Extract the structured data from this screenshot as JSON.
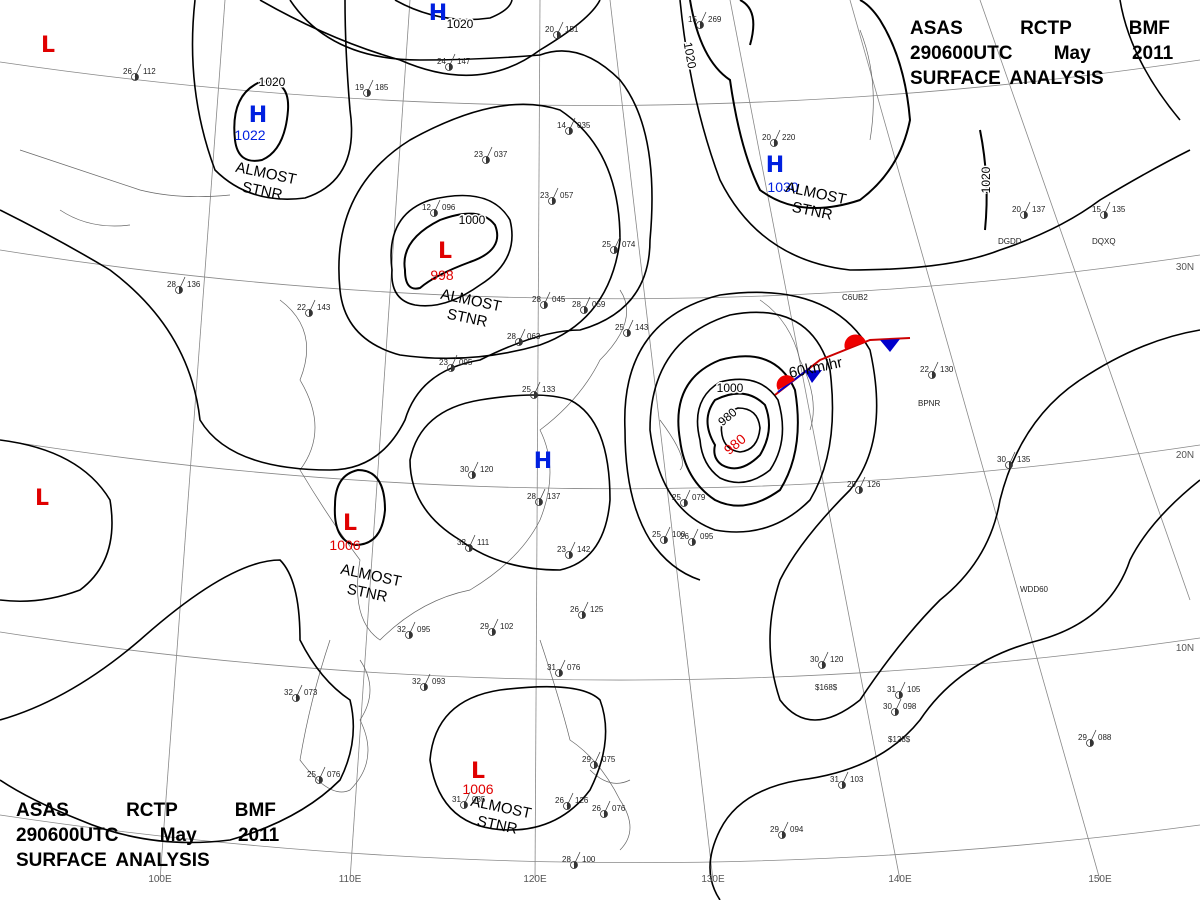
{
  "header": {
    "line1": "ASAS RCTP BMF",
    "line2": "290600UTC May 2011",
    "line3": "SURFACE ANALYSIS"
  },
  "footer": {
    "line1": "ASAS RCTP BMF",
    "line2": "290600UTC May 2011",
    "line3": "SURFACE ANALYSIS"
  },
  "pressure_centers": [
    {
      "symbol": "L"
    },
    {
      "symbol": "H",
      "pressure": "1022",
      "status": [
        "ALMOST",
        "STNR"
      ]
    },
    {
      "symbol": "H"
    },
    {
      "symbol": "L",
      "pressure": "998",
      "status": [
        "ALMOST",
        "STNR"
      ]
    },
    {
      "symbol": "H",
      "pressure": "1030",
      "status": [
        "ALMOST",
        "STNR"
      ]
    },
    {
      "symbol": "H"
    },
    {
      "symbol": "L"
    },
    {
      "symbol": "L",
      "pressure": "1006",
      "status": [
        "ALMOST",
        "STNR"
      ]
    },
    {
      "symbol": "L",
      "pressure": "1006",
      "status": [
        "ALMOST",
        "STNR"
      ]
    }
  ],
  "typhoon": {
    "pressure": "980",
    "motion": "60km/hr"
  },
  "isobar_labels": [
    "1020",
    "1020",
    "1020",
    "1020",
    "1000",
    "1000",
    "980"
  ],
  "latitude_labels": [
    "30N",
    "20N",
    "10N"
  ],
  "longitude_labels": [
    "100E",
    "110E",
    "120E",
    "130E",
    "140E",
    "150E"
  ],
  "stations": [
    {
      "temp": "26",
      "pressure": "112"
    },
    {
      "temp": "19",
      "pressure": "185"
    },
    {
      "temp": "24",
      "pressure": "147"
    },
    {
      "temp": "20",
      "pressure": "151"
    },
    {
      "temp": "14",
      "pressure": "035"
    },
    {
      "temp": "23",
      "pressure": "037"
    },
    {
      "temp": "12",
      "pressure": "096"
    },
    {
      "temp": "23",
      "pressure": "057"
    },
    {
      "temp": "25",
      "pressure": "074"
    },
    {
      "temp": "22",
      "pressure": "143"
    },
    {
      "temp": "28",
      "pressure": "136"
    },
    {
      "temp": "28",
      "pressure": "045"
    },
    {
      "temp": "28",
      "pressure": "059"
    },
    {
      "temp": "28",
      "pressure": "063"
    },
    {
      "temp": "23",
      "pressure": "095"
    },
    {
      "temp": "25",
      "pressure": "133"
    },
    {
      "temp": "25",
      "pressure": "143"
    },
    {
      "temp": "30",
      "pressure": "120"
    },
    {
      "temp": "28",
      "pressure": "137"
    },
    {
      "temp": "32",
      "pressure": "111"
    },
    {
      "temp": "23",
      "pressure": "142"
    },
    {
      "temp": "26",
      "pressure": "125"
    },
    {
      "temp": "32",
      "pressure": "095"
    },
    {
      "temp": "29",
      "pressure": "102"
    },
    {
      "temp": "32",
      "pressure": "093"
    },
    {
      "temp": "32",
      "pressure": "073"
    },
    {
      "temp": "25",
      "pressure": "076"
    },
    {
      "temp": "31",
      "pressure": "076"
    },
    {
      "temp": "25",
      "pressure": "100"
    },
    {
      "temp": "25",
      "pressure": "079"
    },
    {
      "temp": "26",
      "pressure": "095"
    },
    {
      "temp": "30",
      "pressure": "120"
    },
    {
      "temp": "31",
      "pressure": "105"
    },
    {
      "temp": "30",
      "pressure": "098"
    },
    {
      "temp": "31",
      "pressure": "103"
    },
    {
      "temp": "29",
      "pressure": "094"
    },
    {
      "temp": "29",
      "pressure": "088"
    },
    {
      "temp": "30",
      "pressure": "135"
    },
    {
      "temp": "22",
      "pressure": "130"
    },
    {
      "temp": "15",
      "pressure": "135"
    },
    {
      "temp": "20",
      "pressure": "137"
    },
    {
      "temp": "29",
      "pressure": "126"
    },
    {
      "temp": "15",
      "pressure": "269"
    },
    {
      "temp": "20",
      "pressure": "220"
    },
    {
      "temp": "29",
      "pressure": "075"
    },
    {
      "temp": "26",
      "pressure": "126"
    },
    {
      "temp": "26",
      "pressure": "076"
    },
    {
      "temp": "28",
      "pressure": "100"
    },
    {
      "temp": "31",
      "pressure": "085"
    }
  ],
  "ship_ids": [
    "DGDD",
    "DQXQ",
    "C6UB2",
    "BPNR",
    "WDD60",
    "$168$",
    "$128$"
  ]
}
